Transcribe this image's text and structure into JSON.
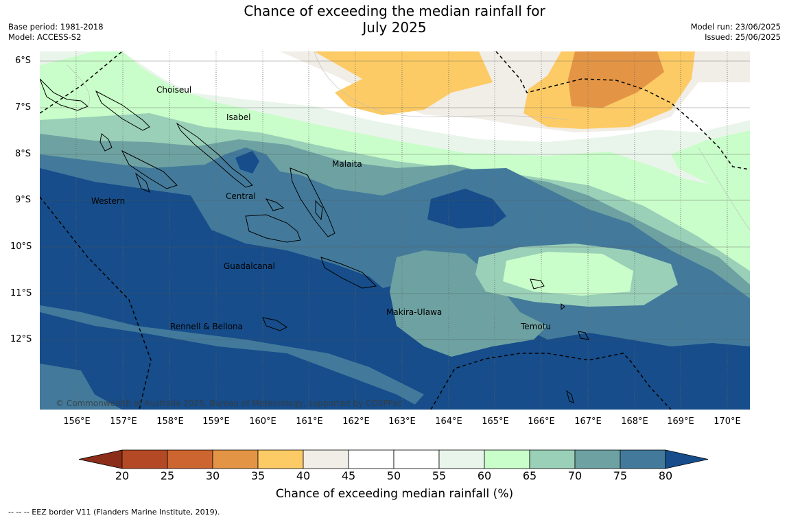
{
  "title_line1": "Chance of exceeding the median rainfall for",
  "title_line2": "July 2025",
  "meta_left": [
    "Base period: 1981-2018",
    "Model: ACCESS-S2"
  ],
  "meta_right": [
    "Model run: 23/06/2025",
    "Issued: 25/06/2025"
  ],
  "lat_ticks": [
    "6°S",
    "7°S",
    "8°S",
    "9°S",
    "10°S",
    "11°S",
    "12°S"
  ],
  "lon_ticks": [
    "156°E",
    "157°E",
    "158°E",
    "159°E",
    "160°E",
    "161°E",
    "162°E",
    "163°E",
    "164°E",
    "165°E",
    "166°E",
    "167°E",
    "168°E",
    "169°E",
    "170°E"
  ],
  "regions": [
    {
      "label": "Choiseul"
    },
    {
      "label": "Isabel"
    },
    {
      "label": "Malaita"
    },
    {
      "label": "Western"
    },
    {
      "label": "Central"
    },
    {
      "label": "Guadalcanal"
    },
    {
      "label": "Makira-Ulawa"
    },
    {
      "label": "Rennell & Bellona"
    },
    {
      "label": "Temotu"
    }
  ],
  "copyright": "© Commonwealth of Australia 2025, Bureau of Meteorology, supported by COSPPac",
  "colorbar": {
    "ticks": [
      "20",
      "25",
      "30",
      "35",
      "40",
      "45",
      "50",
      "55",
      "60",
      "65",
      "70",
      "75",
      "80"
    ],
    "colors": [
      "#8c2d19",
      "#b44a25",
      "#cd6530",
      "#e39545",
      "#fdcb65",
      "#f1ede7",
      "#ffffff",
      "#ffffff",
      "#e9f5ea",
      "#c9fdc9",
      "#9ad0b8",
      "#6ea2a2",
      "#437a9b",
      "#164d8a"
    ],
    "label": "Chance of exceeding median rainfall (%)"
  },
  "footnote": "--  --  -- EEZ border V11 (Flanders Marine Institute, 2019)."
}
